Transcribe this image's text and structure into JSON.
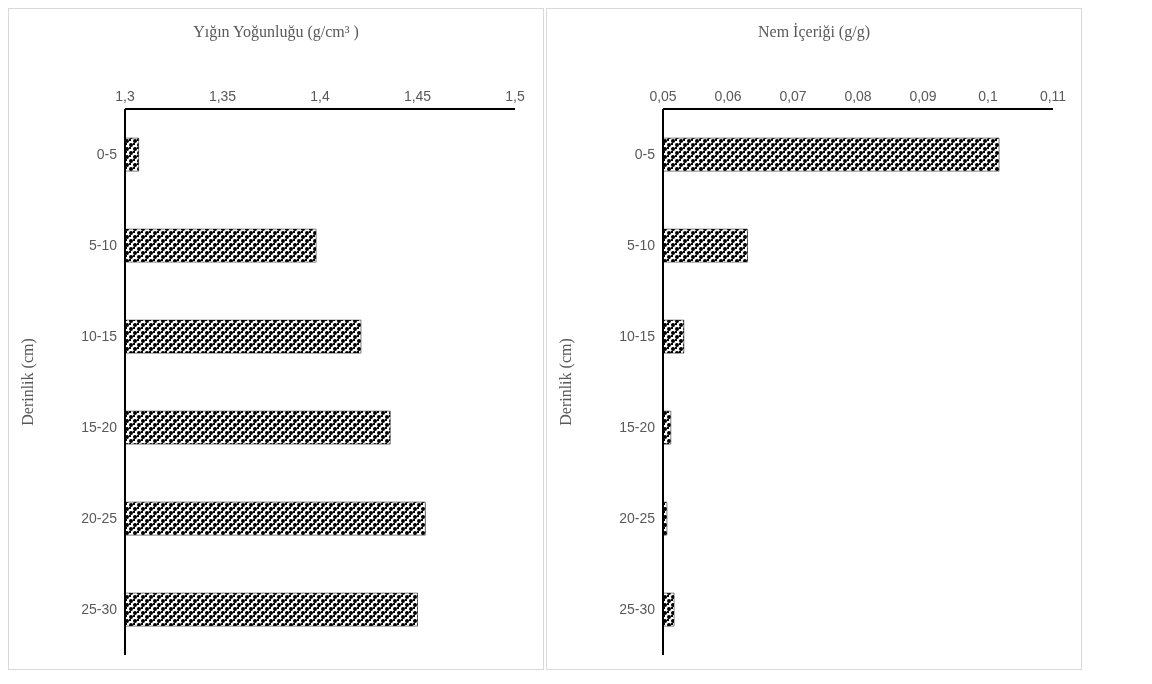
{
  "chart_data": [
    {
      "type": "bar",
      "orientation": "horizontal",
      "title": "Yığın Yoğunluğu (g/cm³ )",
      "ylabel": "Derinlik (cm)",
      "categories": [
        "0-5",
        "5-10",
        "10-15",
        "15-20",
        "20-25",
        "25-30"
      ],
      "values": [
        1.307,
        1.398,
        1.421,
        1.436,
        1.454,
        1.45
      ],
      "color": "#000000",
      "xlim": [
        1.3,
        1.5
      ],
      "xticks": [
        {
          "value": 1.3,
          "label": "1,3"
        },
        {
          "value": 1.35,
          "label": "1,35"
        },
        {
          "value": 1.4,
          "label": "1,4"
        },
        {
          "value": 1.45,
          "label": "1,45"
        },
        {
          "value": 1.5,
          "label": "1,5"
        }
      ],
      "grid": false,
      "legend": false
    },
    {
      "type": "bar",
      "orientation": "horizontal",
      "title": "Nem İçeriği (g/g)",
      "ylabel": "Derinlik (cm)",
      "categories": [
        "0-5",
        "5-10",
        "10-15",
        "15-20",
        "20-25",
        "25-30"
      ],
      "values": [
        0.1017,
        0.063,
        0.0532,
        0.0512,
        0.0506,
        0.0517
      ],
      "color": "#000000",
      "xlim": [
        0.05,
        0.11
      ],
      "xticks": [
        {
          "value": 0.05,
          "label": "0,05"
        },
        {
          "value": 0.06,
          "label": "0,06"
        },
        {
          "value": 0.07,
          "label": "0,07"
        },
        {
          "value": 0.08,
          "label": "0,08"
        },
        {
          "value": 0.09,
          "label": "0,09"
        },
        {
          "value": 0.1,
          "label": "0,1"
        },
        {
          "value": 0.11,
          "label": "0,11"
        }
      ],
      "grid": false,
      "legend": false
    }
  ]
}
